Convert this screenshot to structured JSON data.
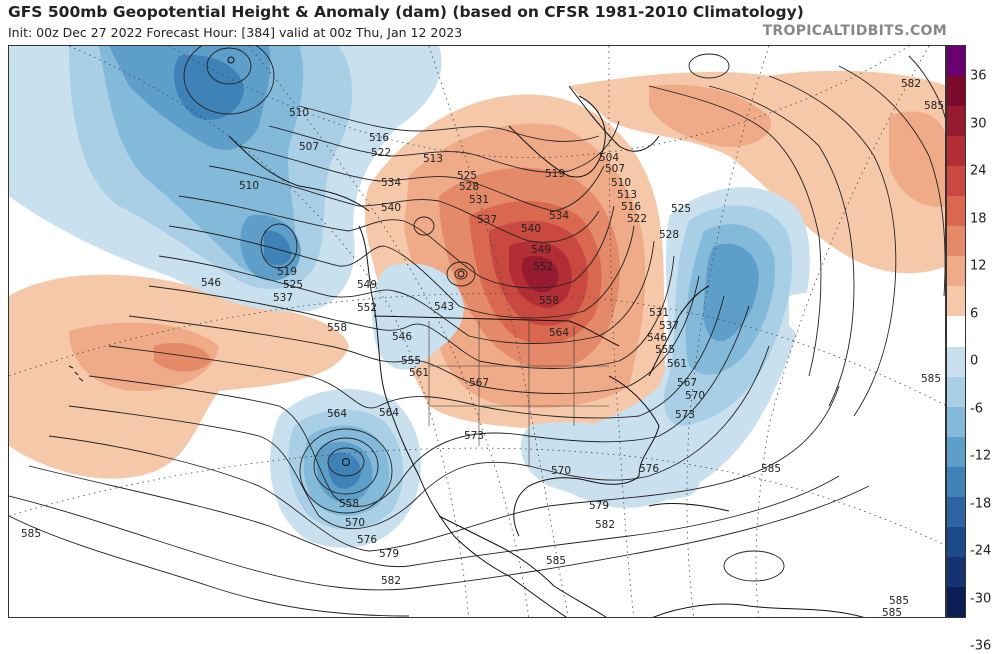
{
  "header": {
    "title": "GFS 500mb Geopotential Height & Anomaly (dam) (based on CFSR 1981-2010 Climatology)",
    "subtitle": "Init: 00z Dec 27 2022   Forecast Hour: [384]   valid at 00z Thu, Jan 12 2023",
    "brand": "TROPICALTIDBITS.COM"
  },
  "colorbar": {
    "ticks": [
      "36",
      "30",
      "24",
      "18",
      "12",
      "6",
      "0",
      "-6",
      "-12",
      "-18",
      "-24",
      "-30",
      "-36"
    ],
    "colors": [
      "#6a006f",
      "#7b0a2c",
      "#961b30",
      "#b32e34",
      "#c9483f",
      "#d9684f",
      "#e58a68",
      "#efaa88",
      "#f6c8aa",
      "#ffffff",
      "#c9e0ee",
      "#a9cfe6",
      "#84bad9",
      "#5e9fca",
      "#3f82b8",
      "#2e64a3",
      "#1d4a8a",
      "#143370",
      "#0b1d55"
    ]
  },
  "map": {
    "contour_labels": [
      {
        "text": "510",
        "id": "a1"
      },
      {
        "text": "507",
        "id": "a2"
      },
      {
        "text": "510",
        "id": "a3"
      },
      {
        "text": "516",
        "id": "a4"
      },
      {
        "text": "522",
        "id": "a5"
      },
      {
        "text": "513",
        "id": "a6"
      },
      {
        "text": "534",
        "id": "a7"
      },
      {
        "text": "525",
        "id": "a8"
      },
      {
        "text": "528",
        "id": "a9"
      },
      {
        "text": "531",
        "id": "a10"
      },
      {
        "text": "519",
        "id": "a11"
      },
      {
        "text": "540",
        "id": "a12"
      },
      {
        "text": "537",
        "id": "a13"
      },
      {
        "text": "534",
        "id": "a14"
      },
      {
        "text": "540",
        "id": "a15"
      },
      {
        "text": "549",
        "id": "a16"
      },
      {
        "text": "552",
        "id": "a17"
      },
      {
        "text": "519",
        "id": "a18"
      },
      {
        "text": "525",
        "id": "a19"
      },
      {
        "text": "537",
        "id": "a20"
      },
      {
        "text": "546",
        "id": "a21"
      },
      {
        "text": "549",
        "id": "a22"
      },
      {
        "text": "552",
        "id": "a23"
      },
      {
        "text": "543",
        "id": "a24"
      },
      {
        "text": "558",
        "id": "a25"
      },
      {
        "text": "546",
        "id": "a26"
      },
      {
        "text": "555",
        "id": "a27"
      },
      {
        "text": "561",
        "id": "a28"
      },
      {
        "text": "567",
        "id": "a29"
      },
      {
        "text": "558",
        "id": "a30"
      },
      {
        "text": "564",
        "id": "a31"
      },
      {
        "text": "504",
        "id": "a32"
      },
      {
        "text": "507",
        "id": "a33"
      },
      {
        "text": "510",
        "id": "a34"
      },
      {
        "text": "513",
        "id": "a35"
      },
      {
        "text": "516",
        "id": "a36"
      },
      {
        "text": "522",
        "id": "a37"
      },
      {
        "text": "525",
        "id": "a38"
      },
      {
        "text": "528",
        "id": "a39"
      },
      {
        "text": "531",
        "id": "a40"
      },
      {
        "text": "537",
        "id": "a41"
      },
      {
        "text": "546",
        "id": "a42"
      },
      {
        "text": "555",
        "id": "a43"
      },
      {
        "text": "561",
        "id": "a44"
      },
      {
        "text": "567",
        "id": "a45"
      },
      {
        "text": "570",
        "id": "a46"
      },
      {
        "text": "573",
        "id": "a47"
      },
      {
        "text": "573",
        "id": "a48"
      },
      {
        "text": "570",
        "id": "a49"
      },
      {
        "text": "576",
        "id": "a50"
      },
      {
        "text": "579",
        "id": "a51"
      },
      {
        "text": "582",
        "id": "a52"
      },
      {
        "text": "585",
        "id": "a53"
      },
      {
        "text": "564",
        "id": "a54"
      },
      {
        "text": "564",
        "id": "a55"
      },
      {
        "text": "558",
        "id": "a56"
      },
      {
        "text": "570",
        "id": "a57"
      },
      {
        "text": "576",
        "id": "a58"
      },
      {
        "text": "579",
        "id": "a59"
      },
      {
        "text": "582",
        "id": "a60"
      },
      {
        "text": "585",
        "id": "a61"
      },
      {
        "text": "585",
        "id": "a62"
      },
      {
        "text": "585",
        "id": "a63"
      },
      {
        "text": "582",
        "id": "a64"
      },
      {
        "text": "585",
        "id": "a65"
      },
      {
        "text": "585",
        "id": "a66"
      },
      {
        "text": "585",
        "id": "a67"
      }
    ]
  }
}
